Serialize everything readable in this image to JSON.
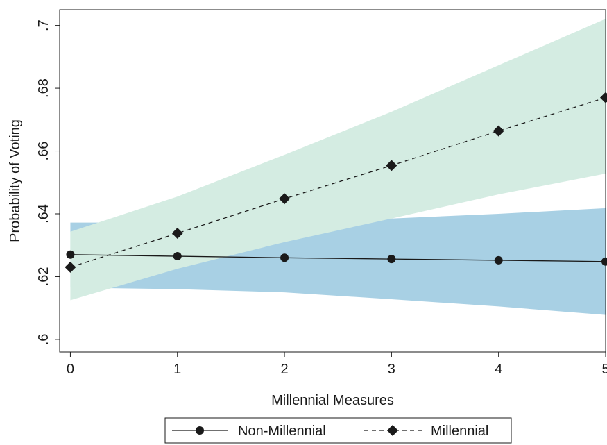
{
  "chart_data": {
    "type": "line",
    "xlabel": "Millennial Measures",
    "ylabel": "Probability of Voting",
    "x": [
      0,
      1,
      2,
      3,
      4,
      5
    ],
    "xlim": [
      -0.1,
      5.0
    ],
    "ylim": [
      0.596,
      0.705
    ],
    "xticks": [
      0,
      1,
      2,
      3,
      4,
      5
    ],
    "xtick_labels": [
      "0",
      "1",
      "2",
      "3",
      "4",
      "5"
    ],
    "yticks": [
      0.6,
      0.62,
      0.64,
      0.66,
      0.68,
      0.7
    ],
    "ytick_labels": [
      ".6",
      ".62",
      ".64",
      ".66",
      ".68",
      ".7"
    ],
    "grid": false,
    "legend_position": "bottom-center",
    "series": [
      {
        "name": "Non-Millennial",
        "marker": "circle",
        "line_style": "solid",
        "color": "#1a1a1a",
        "band_color": "#a8d0e4",
        "values": [
          0.627,
          0.6265,
          0.626,
          0.6256,
          0.6252,
          0.6248
        ],
        "ci_lower": [
          0.6165,
          0.616,
          0.615,
          0.6128,
          0.6105,
          0.6078
        ],
        "ci_upper": [
          0.6372,
          0.6372,
          0.6374,
          0.6385,
          0.64,
          0.6418
        ]
      },
      {
        "name": "Millennial",
        "marker": "diamond",
        "line_style": "dashed",
        "color": "#1a1a1a",
        "band_color": "#d4ece2",
        "values": [
          0.623,
          0.6338,
          0.6448,
          0.6554,
          0.6664,
          0.677
        ],
        "ci_lower": [
          0.6125,
          0.6225,
          0.631,
          0.6385,
          0.6462,
          0.6528
        ],
        "ci_upper": [
          0.6343,
          0.6455,
          0.6588,
          0.6725,
          0.6873,
          0.7021
        ]
      }
    ]
  }
}
